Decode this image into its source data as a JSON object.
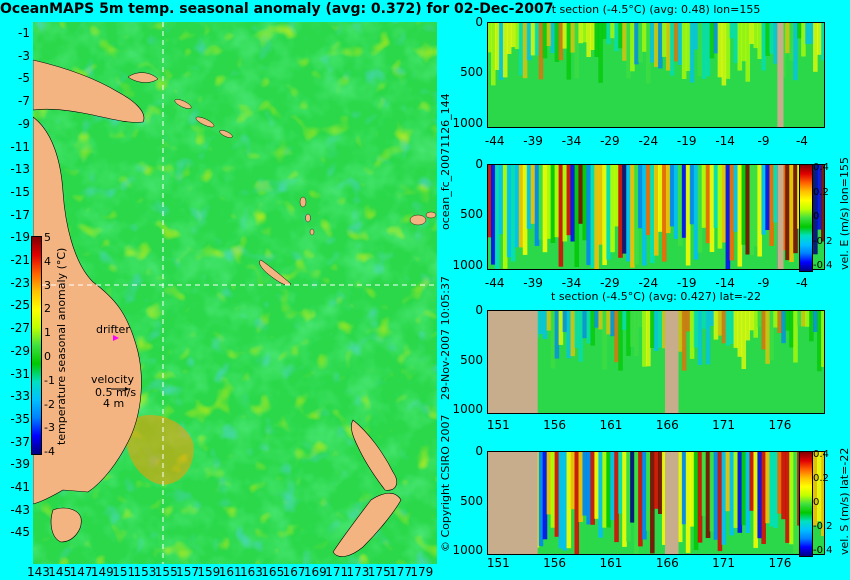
{
  "colors": {
    "background": "#00ffff",
    "land": "#f4b482",
    "ocean_green": "#2ad84a",
    "section_land": "#c8ad8c",
    "anomaly_cmap": [
      "#000080",
      "#0000ff",
      "#0080ff",
      "#00c0ff",
      "#00e0c0",
      "#00c800",
      "#40e040",
      "#c0ff00",
      "#ffff00",
      "#ffc000",
      "#ff6000",
      "#e00000",
      "#800000"
    ],
    "drifter_marker": "#ff00ff"
  },
  "main_map": {
    "title": "OceanMAPS 5m temp. seasonal anomaly (avg: 0.372) for 02-Dec-2007",
    "x_ticks": [
      "143",
      "145",
      "147",
      "149",
      "151",
      "153",
      "155",
      "157",
      "159",
      "161",
      "163",
      "165",
      "167",
      "169",
      "171",
      "173",
      "175",
      "177",
      "179"
    ],
    "y_ticks": [
      "-1",
      "-3",
      "-5",
      "-7",
      "-9",
      "-11",
      "-13",
      "-15",
      "-17",
      "-19",
      "-21",
      "-23",
      "-25",
      "-27",
      "-29",
      "-31",
      "-33",
      "-35",
      "-37",
      "-39",
      "-41",
      "-43",
      "-45"
    ],
    "crosshair": {
      "lon": 155,
      "lat": -22
    },
    "colorbar": {
      "label": "temperature seasonal anomaly (°C)",
      "ticks": [
        "5",
        "4",
        "3",
        "2",
        "1",
        "0",
        "-1",
        "-2",
        "-3",
        "-4"
      ],
      "range": [
        -4,
        5
      ]
    },
    "drifter_label": "drifter",
    "velocity_label": "velocity",
    "velocity_scale_1": "0.5 m/s",
    "velocity_scale_2": "4 m"
  },
  "side_texts": {
    "forecast_id": "ocean_fc_20071126_144",
    "timestamp": "29-Nov-2007 10:05:37",
    "copyright": "© Copyright CSIRO 2007"
  },
  "chart_data": [
    {
      "type": "heatmap",
      "title": "t section (-4.5°C) (avg: 0.48) lon=155",
      "x_ticks": [
        "-44",
        "-39",
        "-34",
        "-29",
        "-24",
        "-19",
        "-14",
        "-9",
        "-4"
      ],
      "y_ticks": [
        "0",
        "500",
        "1000"
      ],
      "xlim": [
        -45,
        -1
      ],
      "ylim": [
        1050,
        0
      ],
      "land_x": [
        -7.2,
        -6.4
      ]
    },
    {
      "type": "heatmap",
      "title": "",
      "ylabel": "vel. E (m/s) lon=155",
      "x_ticks": [
        "-44",
        "-39",
        "-34",
        "-29",
        "-24",
        "-19",
        "-14",
        "-9",
        "-4"
      ],
      "y_ticks": [
        "0",
        "500",
        "1000"
      ],
      "colorbar_ticks": [
        "0.4",
        "0.2",
        "0",
        "-0.2",
        "-0.4"
      ],
      "xlim": [
        -45,
        -1
      ],
      "ylim": [
        1050,
        0
      ],
      "land_x": [
        -7.2,
        -6.4
      ]
    },
    {
      "type": "heatmap",
      "title": "t section (-4.5°C) (avg: 0.427) lat=-22",
      "x_ticks": [
        "151",
        "156",
        "161",
        "166",
        "171",
        "176"
      ],
      "y_ticks": [
        "0",
        "500",
        "1000"
      ],
      "xlim": [
        150,
        180
      ],
      "ylim": [
        1050,
        0
      ],
      "land_x": [
        [
          150,
          154.5
        ],
        [
          165.8,
          167
        ]
      ]
    },
    {
      "type": "heatmap",
      "title": "",
      "ylabel": "vel. S (m/s) lat=-22",
      "x_ticks": [
        "151",
        "156",
        "161",
        "166",
        "171",
        "176"
      ],
      "y_ticks": [
        "0",
        "500",
        "1000"
      ],
      "colorbar_ticks": [
        "0.4",
        "0.2",
        "0",
        "-0.2",
        "-0.4"
      ],
      "xlim": [
        150,
        180
      ],
      "ylim": [
        1050,
        0
      ],
      "land_x": [
        [
          150,
          154.5
        ],
        [
          165.8,
          167
        ]
      ]
    }
  ]
}
